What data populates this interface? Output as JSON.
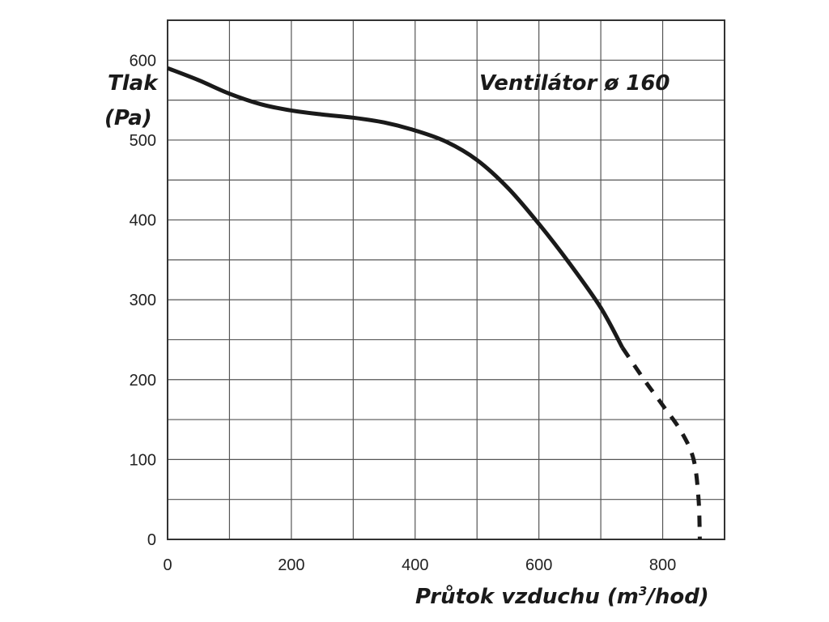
{
  "chart_data": {
    "type": "line",
    "title": "Ventilátor ø 160",
    "ylabel_line1": "Tlak",
    "ylabel_line2": "(Pa)",
    "xlabel_prefix": "Průtok vzduchu (m",
    "xlabel_sup": "3",
    "xlabel_suffix": "/hod)",
    "xlim": [
      0,
      900
    ],
    "ylim": [
      0,
      650
    ],
    "x_ticks": [
      0,
      200,
      400,
      600,
      800
    ],
    "y_ticks": [
      0,
      100,
      200,
      300,
      400,
      500,
      600
    ],
    "x_grid_step": 100,
    "y_grid_step": 50,
    "grid": true,
    "line_color": "#1a1a1a",
    "series": [
      {
        "style": "solid",
        "x": [
          0,
          50,
          100,
          150,
          200,
          250,
          300,
          350,
          400,
          450,
          500,
          550,
          600,
          650,
          700,
          735
        ],
        "y": [
          590,
          575,
          558,
          545,
          537,
          532,
          528,
          522,
          512,
          498,
          475,
          440,
          395,
          345,
          290,
          240
        ]
      },
      {
        "style": "dashed",
        "x": [
          735,
          770,
          800,
          830,
          850,
          858,
          860
        ],
        "y": [
          240,
          200,
          168,
          135,
          100,
          50,
          0
        ]
      }
    ]
  }
}
